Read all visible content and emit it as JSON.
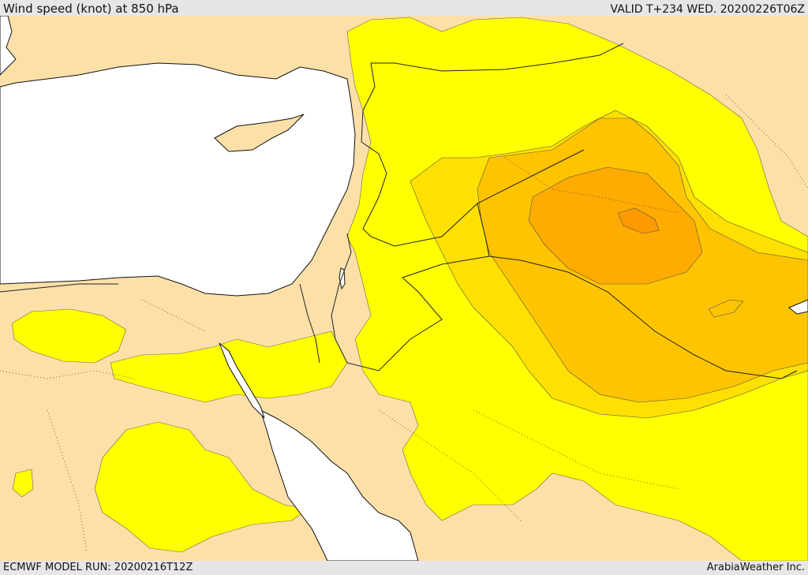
{
  "header": {
    "title": "Wind speed (knot) at 850 hPa",
    "valid": "VALID T+234 WED. 20200226T06Z"
  },
  "footer": {
    "model_run": "ECMWF MODEL RUN: 20200216T12Z",
    "credit": "ArabiaWeather Inc."
  },
  "colors": {
    "land_low": "#fde0a8",
    "band_yellow": "#ffff00",
    "band_gold": "#ffe000",
    "band_amber": "#ffc400",
    "band_orange": "#ffab00",
    "band_deep": "#ff9a00",
    "sea": "#ffffff",
    "contour": "#333333"
  }
}
